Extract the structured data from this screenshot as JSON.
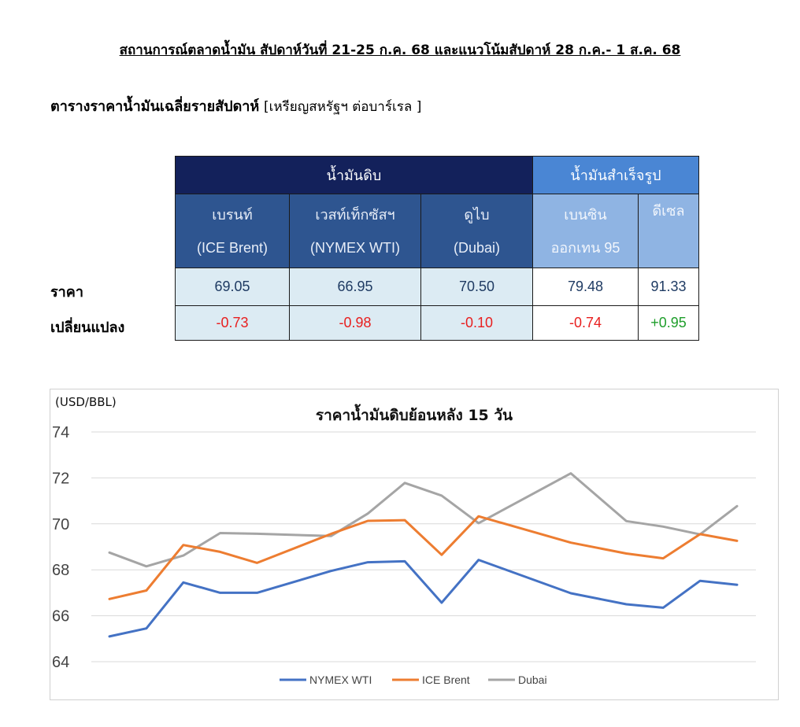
{
  "report": {
    "title": "สถานการณ์ตลาดน้ำมัน สัปดาห์วันที่ 21-25 ก.ค. 68 และแนวโน้มสัปดาห์ 28 ก.ค.- 1 ส.ค. 68",
    "table_title": "ตารางราคาน้ำมันเฉลี่ยรายสัปดาห์",
    "table_unit": "[เหรียญสหรัฐฯ ต่อบาร์เรล ]"
  },
  "table": {
    "group_crude": "น้ำมันดิบ",
    "group_refined": "น้ำมันสำเร็จรูป",
    "row_price": "ราคา",
    "row_change": "เปลี่ยนแปลง",
    "columns": [
      {
        "name": "เบรนท์",
        "sub": "(ICE Brent)",
        "price": "69.05",
        "change": "-0.73",
        "change_dir": "neg"
      },
      {
        "name": "เวสท์เท็กซัสฯ",
        "sub": "(NYMEX WTI)",
        "price": "66.95",
        "change": "-0.98",
        "change_dir": "neg"
      },
      {
        "name": "ดูไบ",
        "sub": "(Dubai)",
        "price": "70.50",
        "change": "-0.10",
        "change_dir": "neg"
      },
      {
        "name": "เบนซิน",
        "sub": "ออกเทน  95",
        "price": "79.48",
        "change": "-0.74",
        "change_dir": "neg"
      },
      {
        "name": "ดีเซล",
        "sub": "",
        "price": "91.33",
        "change": "+0.95",
        "change_dir": "pos"
      }
    ]
  },
  "colors": {
    "wti": "#4472c4",
    "brent": "#ed7d31",
    "dubai": "#a5a5a5",
    "negative": "#e81f1f",
    "positive": "#1f9e2b"
  },
  "chart_data": {
    "type": "line",
    "title": "ราคาน้ำมันดิบย้อนหลัง 15 วัน",
    "unit_label": "(USD/BBL)",
    "ylim": [
      64,
      74
    ],
    "yticks": [
      "64",
      "66",
      "68",
      "70",
      "72",
      "74"
    ],
    "grid": true,
    "legend_position": "bottom",
    "x": [
      1,
      2,
      3,
      4,
      5,
      6,
      7,
      8,
      9,
      10,
      11,
      12,
      13,
      14,
      15
    ],
    "series": [
      {
        "name": "NYMEX WTI",
        "color": "#4472c4",
        "values": [
          65.1,
          65.45,
          67.45,
          67.0,
          67.0,
          67.95,
          68.33,
          68.37,
          66.57,
          68.43,
          66.98,
          66.5,
          66.35,
          67.52,
          67.35
        ]
      },
      {
        "name": "ICE Brent",
        "color": "#ed7d31",
        "values": [
          66.73,
          67.1,
          69.08,
          68.78,
          68.3,
          69.56,
          70.13,
          70.16,
          68.65,
          70.33,
          69.18,
          68.71,
          68.5,
          69.55,
          69.26
        ]
      },
      {
        "name": "Dubai",
        "color": "#a5a5a5",
        "values": [
          68.75,
          68.15,
          68.62,
          69.6,
          69.57,
          69.47,
          70.45,
          71.78,
          71.23,
          70.03,
          72.2,
          70.12,
          69.88,
          69.54,
          70.77
        ]
      }
    ],
    "x_positions": [
      0,
      1,
      2,
      3,
      4,
      6,
      7,
      8,
      9,
      10,
      12.5,
      14,
      15,
      16,
      17
    ]
  }
}
